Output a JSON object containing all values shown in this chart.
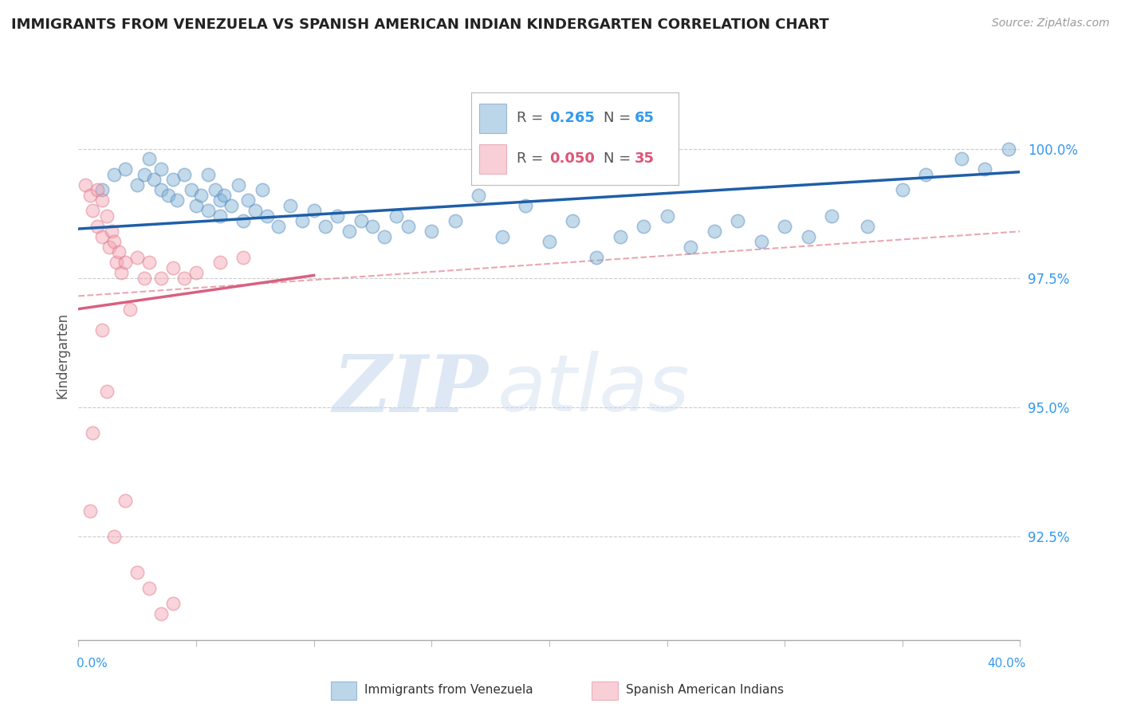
{
  "title": "IMMIGRANTS FROM VENEZUELA VS SPANISH AMERICAN INDIAN KINDERGARTEN CORRELATION CHART",
  "source": "Source: ZipAtlas.com",
  "ylabel": "Kindergarten",
  "xlim": [
    0.0,
    40.0
  ],
  "ylim": [
    90.5,
    101.5
  ],
  "yticks": [
    92.5,
    95.0,
    97.5,
    100.0
  ],
  "ytick_labels": [
    "92.5%",
    "95.0%",
    "97.5%",
    "100.0%"
  ],
  "xtick_positions": [
    0,
    5,
    10,
    15,
    20,
    25,
    30,
    35,
    40
  ],
  "legend_blue_r": "0.265",
  "legend_blue_n": "65",
  "legend_pink_r": "0.050",
  "legend_pink_n": "35",
  "blue_color": "#7BAFD4",
  "pink_color": "#F4A0B0",
  "blue_edge": "#5588BB",
  "pink_edge": "#DD7788",
  "trend_blue_color": "#1E5FA8",
  "trend_pink_color": "#D96080",
  "trend_dashed_color": "#E08090",
  "blue_scatter_x": [
    1.0,
    1.5,
    2.0,
    2.5,
    2.8,
    3.0,
    3.2,
    3.5,
    3.5,
    3.8,
    4.0,
    4.2,
    4.5,
    4.8,
    5.0,
    5.2,
    5.5,
    5.5,
    5.8,
    6.0,
    6.0,
    6.2,
    6.5,
    6.8,
    7.0,
    7.2,
    7.5,
    7.8,
    8.0,
    8.5,
    9.0,
    9.5,
    10.0,
    10.5,
    11.0,
    11.5,
    12.0,
    12.5,
    13.0,
    13.5,
    14.0,
    15.0,
    16.0,
    17.0,
    18.0,
    19.0,
    20.0,
    21.0,
    22.0,
    23.0,
    24.0,
    25.0,
    26.0,
    27.0,
    28.0,
    29.0,
    30.0,
    31.0,
    32.0,
    33.5,
    35.0,
    36.0,
    37.5,
    38.5,
    39.5
  ],
  "blue_scatter_y": [
    99.2,
    99.5,
    99.6,
    99.3,
    99.5,
    99.8,
    99.4,
    99.2,
    99.6,
    99.1,
    99.4,
    99.0,
    99.5,
    99.2,
    98.9,
    99.1,
    99.5,
    98.8,
    99.2,
    99.0,
    98.7,
    99.1,
    98.9,
    99.3,
    98.6,
    99.0,
    98.8,
    99.2,
    98.7,
    98.5,
    98.9,
    98.6,
    98.8,
    98.5,
    98.7,
    98.4,
    98.6,
    98.5,
    98.3,
    98.7,
    98.5,
    98.4,
    98.6,
    99.1,
    98.3,
    98.9,
    98.2,
    98.6,
    97.9,
    98.3,
    98.5,
    98.7,
    98.1,
    98.4,
    98.6,
    98.2,
    98.5,
    98.3,
    98.7,
    98.5,
    99.2,
    99.5,
    99.8,
    99.6,
    100.0
  ],
  "pink_scatter_x": [
    0.3,
    0.5,
    0.6,
    0.8,
    0.8,
    1.0,
    1.0,
    1.2,
    1.3,
    1.4,
    1.5,
    1.6,
    1.7,
    1.8,
    2.0,
    2.2,
    2.5,
    2.8,
    3.0,
    3.5,
    4.0,
    4.5,
    5.0,
    6.0,
    7.0,
    1.0,
    1.2,
    1.5,
    2.0,
    2.5,
    3.0,
    3.5,
    4.0,
    0.6,
    0.5
  ],
  "pink_scatter_y": [
    99.3,
    99.1,
    98.8,
    99.2,
    98.5,
    99.0,
    98.3,
    98.7,
    98.1,
    98.4,
    98.2,
    97.8,
    98.0,
    97.6,
    97.8,
    96.9,
    97.9,
    97.5,
    97.8,
    97.5,
    97.7,
    97.5,
    97.6,
    97.8,
    97.9,
    96.5,
    95.3,
    92.5,
    93.2,
    91.8,
    91.5,
    91.0,
    91.2,
    94.5,
    93.0
  ],
  "blue_trend_x0": 0.0,
  "blue_trend_x1": 40.0,
  "blue_trend_y0": 98.45,
  "blue_trend_y1": 99.55,
  "pink_trend_x0": 0.0,
  "pink_trend_x1": 10.0,
  "pink_trend_y0": 96.9,
  "pink_trend_y1": 97.55,
  "dashed_trend_x0": 0.0,
  "dashed_trend_x1": 40.0,
  "dashed_trend_y0": 97.15,
  "dashed_trend_y1": 98.4,
  "legend_label_blue": "Immigrants from Venezuela",
  "legend_label_pink": "Spanish American Indians",
  "background_color": "#FFFFFF"
}
